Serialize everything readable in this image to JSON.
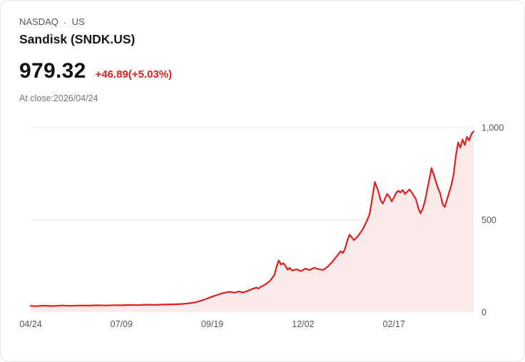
{
  "header": {
    "exchange": "NASDAQ",
    "separator": "·",
    "market": "US",
    "title": "Sandisk (SNDK.US)"
  },
  "quote": {
    "price": "979.32",
    "change": "+46.89(+5.03%)",
    "at_close": "At close:2026/04/24"
  },
  "theme": {
    "accent_red": "#df2020",
    "text_dark": "#141414",
    "text_gray": "#565656",
    "axis_label_color": "#555555",
    "grid_color": "#e9e9e9"
  },
  "chart_data": {
    "type": "area",
    "title": "",
    "xlabel": "",
    "ylabel": "",
    "ylim": [
      0,
      1000
    ],
    "grid": true,
    "legend": false,
    "line_color": "#e01f1f",
    "fill_color": "#fbeaea",
    "y_ticks": [
      {
        "value": 0,
        "label": "0"
      },
      {
        "value": 500,
        "label": "500"
      },
      {
        "value": 1000,
        "label": "1,000"
      }
    ],
    "x_ticks": [
      {
        "pos": 0.0,
        "label": "04/24"
      },
      {
        "pos": 0.205,
        "label": "07/09"
      },
      {
        "pos": 0.41,
        "label": "09/19"
      },
      {
        "pos": 0.615,
        "label": "12/02"
      },
      {
        "pos": 0.82,
        "label": "02/17"
      }
    ],
    "series": [
      {
        "name": "SNDK.US price",
        "points": [
          [
            0,
            34
          ],
          [
            0.01,
            32
          ],
          [
            0.03,
            35
          ],
          [
            0.05,
            33
          ],
          [
            0.07,
            36
          ],
          [
            0.09,
            34
          ],
          [
            0.11,
            36
          ],
          [
            0.13,
            35
          ],
          [
            0.15,
            37
          ],
          [
            0.17,
            36
          ],
          [
            0.19,
            38
          ],
          [
            0.205,
            37
          ],
          [
            0.22,
            39
          ],
          [
            0.24,
            38
          ],
          [
            0.26,
            40
          ],
          [
            0.28,
            39
          ],
          [
            0.3,
            41
          ],
          [
            0.32,
            42
          ],
          [
            0.34,
            44
          ],
          [
            0.355,
            47
          ],
          [
            0.37,
            52
          ],
          [
            0.385,
            62
          ],
          [
            0.4,
            75
          ],
          [
            0.41,
            84
          ],
          [
            0.42,
            92
          ],
          [
            0.43,
            100
          ],
          [
            0.44,
            106
          ],
          [
            0.45,
            110
          ],
          [
            0.46,
            105
          ],
          [
            0.47,
            112
          ],
          [
            0.48,
            106
          ],
          [
            0.49,
            115
          ],
          [
            0.5,
            125
          ],
          [
            0.51,
            133
          ],
          [
            0.515,
            128
          ],
          [
            0.52,
            138
          ],
          [
            0.53,
            150
          ],
          [
            0.54,
            168
          ],
          [
            0.55,
            200
          ],
          [
            0.555,
            245
          ],
          [
            0.56,
            280
          ],
          [
            0.565,
            258
          ],
          [
            0.57,
            265
          ],
          [
            0.575,
            252
          ],
          [
            0.58,
            230
          ],
          [
            0.585,
            240
          ],
          [
            0.59,
            225
          ],
          [
            0.6,
            232
          ],
          [
            0.61,
            222
          ],
          [
            0.615,
            228
          ],
          [
            0.62,
            236
          ],
          [
            0.63,
            228
          ],
          [
            0.64,
            240
          ],
          [
            0.65,
            233
          ],
          [
            0.66,
            228
          ],
          [
            0.67,
            245
          ],
          [
            0.68,
            270
          ],
          [
            0.69,
            300
          ],
          [
            0.7,
            330
          ],
          [
            0.705,
            320
          ],
          [
            0.71,
            345
          ],
          [
            0.715,
            388
          ],
          [
            0.72,
            420
          ],
          [
            0.725,
            405
          ],
          [
            0.73,
            390
          ],
          [
            0.74,
            415
          ],
          [
            0.75,
            450
          ],
          [
            0.76,
            500
          ],
          [
            0.765,
            530
          ],
          [
            0.77,
            600
          ],
          [
            0.777,
            705
          ],
          [
            0.785,
            655
          ],
          [
            0.79,
            605
          ],
          [
            0.795,
            588
          ],
          [
            0.8,
            615
          ],
          [
            0.805,
            640
          ],
          [
            0.81,
            625
          ],
          [
            0.815,
            600
          ],
          [
            0.82,
            620
          ],
          [
            0.825,
            645
          ],
          [
            0.83,
            658
          ],
          [
            0.835,
            648
          ],
          [
            0.84,
            662
          ],
          [
            0.845,
            640
          ],
          [
            0.85,
            652
          ],
          [
            0.855,
            665
          ],
          [
            0.86,
            650
          ],
          [
            0.865,
            630
          ],
          [
            0.87,
            610
          ],
          [
            0.875,
            565
          ],
          [
            0.88,
            535
          ],
          [
            0.885,
            560
          ],
          [
            0.89,
            600
          ],
          [
            0.895,
            660
          ],
          [
            0.9,
            720
          ],
          [
            0.905,
            780
          ],
          [
            0.91,
            745
          ],
          [
            0.915,
            705
          ],
          [
            0.92,
            670
          ],
          [
            0.925,
            640
          ],
          [
            0.93,
            585
          ],
          [
            0.935,
            570
          ],
          [
            0.94,
            610
          ],
          [
            0.945,
            650
          ],
          [
            0.95,
            690
          ],
          [
            0.955,
            750
          ],
          [
            0.96,
            850
          ],
          [
            0.965,
            920
          ],
          [
            0.97,
            890
          ],
          [
            0.975,
            935
          ],
          [
            0.98,
            905
          ],
          [
            0.985,
            950
          ],
          [
            0.99,
            930
          ],
          [
            0.995,
            965
          ],
          [
            1,
            979.32
          ]
        ]
      }
    ]
  }
}
